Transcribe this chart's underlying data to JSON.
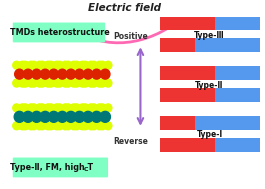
{
  "bg_color": "#ffffff",
  "electric_field_text": "Electric field",
  "arrow_pink_color": "#ff69b4",
  "box1_text": "TMDs heterostructure",
  "box1_color": "#7fffc4",
  "box2_text": "Type-Ⅱ, FM, high T",
  "box2_subscript": "C",
  "box2_color": "#7fffc4",
  "positive_label": "Positive",
  "reverse_label": "Reverse",
  "purple_arrow_color": "#9966cc",
  "bar_red": "#ee3333",
  "bar_blue": "#5599ee",
  "yellow_atom": "#ddff00",
  "red_atom": "#dd2200",
  "teal_atom": "#007777",
  "bond_color1": "#884400",
  "bond_color2": "#005555",
  "type3_label": "Type-Ⅲ",
  "type2_label": "Type-Ⅱ",
  "type1_label": "Type-Ⅰ"
}
